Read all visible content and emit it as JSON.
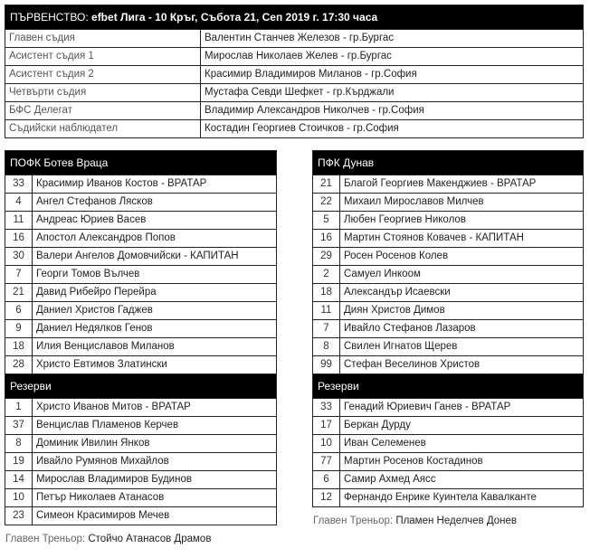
{
  "match": {
    "title_prefix": "ПЪРВЕНСТВО:",
    "title": "efbet Лига - 10 Кръг, Събота 21, Сеп 2019 г. 17:30 часа",
    "officials": [
      {
        "role": "Главен съдия",
        "name": "Валентин Станчев Железов - гр.Бургас"
      },
      {
        "role": "Асистент съдия 1",
        "name": "Мирослав Николаев Желев - гр.Бургас"
      },
      {
        "role": "Асистент съдия 2",
        "name": "Красимир Владимиров Миланов - гр.София"
      },
      {
        "role": "Четвърти съдия",
        "name": "Мустафа Севди Шефкет - гр.Кърджали"
      },
      {
        "role": "БФС Делегат",
        "name": "Владимир Александров Николчев - гр.София"
      },
      {
        "role": "Съдийски наблюдател",
        "name": "Костадин Георгиев Стоичков - гр.София"
      }
    ]
  },
  "home": {
    "team": "ПОФК Ботев Враца",
    "starters": [
      {
        "n": "33",
        "p": "Красимир Иванов Костов - ВРАТАР"
      },
      {
        "n": "4",
        "p": "Ангел Стефанов Лясков"
      },
      {
        "n": "11",
        "p": "Андреас Юриев Васев"
      },
      {
        "n": "16",
        "p": "Апостол Александров Попов"
      },
      {
        "n": "30",
        "p": "Валери Ангелов Домовчийски - КАПИТАН"
      },
      {
        "n": "7",
        "p": "Георги Томов Вълчев"
      },
      {
        "n": "21",
        "p": "Давид Рибейро Перейра"
      },
      {
        "n": "6",
        "p": "Даниел Христов Гаджев"
      },
      {
        "n": "9",
        "p": "Даниел Недялков Генов"
      },
      {
        "n": "18",
        "p": "Илия Венциславов Миланов"
      },
      {
        "n": "28",
        "p": "Христо Евтимов Златински"
      }
    ],
    "reserves_label": "Резерви",
    "reserves": [
      {
        "n": "1",
        "p": "Христо Иванов Митов - ВРАТАР"
      },
      {
        "n": "37",
        "p": "Венцислав Пламенов Керчев"
      },
      {
        "n": "8",
        "p": "Доминик Ивилин Янков"
      },
      {
        "n": "19",
        "p": "Ивайло Румянов Михайлов"
      },
      {
        "n": "14",
        "p": "Мирослав Владимиров Будинов"
      },
      {
        "n": "10",
        "p": "Петър Николаев Атанасов"
      },
      {
        "n": "23",
        "p": "Симеон Красимиров Мечев"
      }
    ],
    "coach_label": "Главен Треньор:",
    "coach": "Стойчо Атанасов Драмов"
  },
  "away": {
    "team": "ПФК Дунав",
    "starters": [
      {
        "n": "21",
        "p": "Благой Георгиев Макенджиев - ВРАТАР"
      },
      {
        "n": "22",
        "p": "Михаил Мирославов Милчев"
      },
      {
        "n": "5",
        "p": "Любен Георгиев Николов"
      },
      {
        "n": "16",
        "p": "Мартин Стоянов Ковачев - КАПИТАН"
      },
      {
        "n": "29",
        "p": "Росен Росенов Колев"
      },
      {
        "n": "2",
        "p": "Самуел Инкоом"
      },
      {
        "n": "18",
        "p": "Александър Исаевски"
      },
      {
        "n": "11",
        "p": "Диян Христов Димов"
      },
      {
        "n": "7",
        "p": "Ивайло Стефанов Лазаров"
      },
      {
        "n": "8",
        "p": "Свилен Игнатов Щерев"
      },
      {
        "n": "99",
        "p": "Стефан Веселинов Христов"
      }
    ],
    "reserves_label": "Резерви",
    "reserves": [
      {
        "n": "33",
        "p": "Генадий Юриевич Ганев - ВРАТАР"
      },
      {
        "n": "17",
        "p": "Беркан Дурду"
      },
      {
        "n": "10",
        "p": "Иван Селеменев"
      },
      {
        "n": "77",
        "p": "Мартин Росенов Костадинов"
      },
      {
        "n": "6",
        "p": "Самир Ахмед Аясс"
      },
      {
        "n": "12",
        "p": "Фернандо Енрике Куинтела Кавалканте"
      }
    ],
    "coach_label": "Главен Треньор:",
    "coach": "Пламен Неделчев Донев"
  }
}
